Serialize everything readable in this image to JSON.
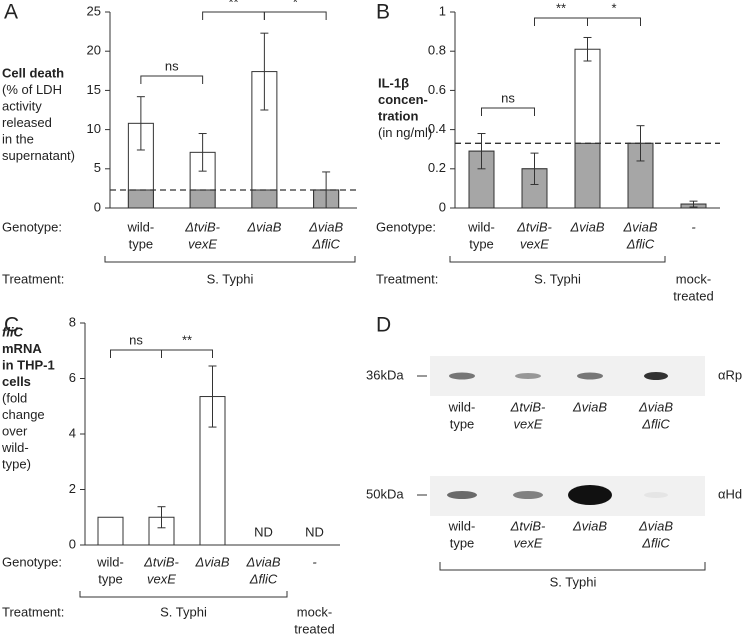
{
  "chart_data": [
    {
      "type": "bar",
      "panel": "A",
      "ylabel": {
        "title": [
          "Cell death"
        ],
        "detail": [
          "(% of LDH",
          "activity",
          "released",
          "in the",
          "supernatant)"
        ]
      },
      "genotype_label": "Genotype:",
      "treatment_label": "Treatment:",
      "treatment": "S. Typhi",
      "categories": [
        [
          "wild-",
          "type"
        ],
        [
          "ΔtviB-",
          "vexE"
        ],
        [
          "ΔviaB"
        ],
        [
          "ΔviaB",
          "ΔfliC"
        ]
      ],
      "values": [
        10.8,
        7.1,
        17.4,
        2.3
      ],
      "errors": [
        3.4,
        2.4,
        4.9,
        2.3
      ],
      "threshold": 2.3,
      "color": "#ffffff",
      "baseline_color": "#a6a6a6",
      "annotations": [
        "ns",
        "**",
        "*"
      ],
      "ylim": [
        0,
        25
      ],
      "yticks": [
        0,
        5,
        10,
        15,
        20,
        25
      ]
    },
    {
      "type": "bar",
      "panel": "B",
      "ylabel": {
        "title": [
          "IL-1β",
          "concen-",
          "tration"
        ],
        "detail": [
          "(in ng/ml)"
        ]
      },
      "genotype_label": "Genotype:",
      "treatment_label": "Treatment:",
      "treatment": "S. Typhi",
      "control": [
        "mock-",
        "treated"
      ],
      "categories": [
        [
          "wild-",
          "type"
        ],
        [
          "ΔtviB-",
          "vexE"
        ],
        [
          "ΔviaB"
        ],
        [
          "ΔviaB",
          "ΔfliC"
        ],
        [
          "-"
        ]
      ],
      "values": [
        0.29,
        0.2,
        0.81,
        0.33,
        0.02
      ],
      "errors": [
        0.09,
        0.08,
        0.06,
        0.09,
        0.015
      ],
      "threshold": 0.33,
      "color": "#ffffff",
      "baseline_color": "#a6a6a6",
      "annotations": [
        "ns",
        "**",
        "*"
      ],
      "ylim": [
        0,
        1
      ],
      "yticks": [
        0,
        0.2,
        0.4,
        0.6,
        0.8,
        1
      ]
    },
    {
      "type": "bar",
      "panel": "C",
      "ylabel": {
        "title": [
          "fliC",
          "mRNA",
          "in THP-1",
          "cells"
        ],
        "detail": [
          "(fold",
          "change",
          "over",
          "wild-",
          "type)"
        ]
      },
      "genotype_label": "Genotype:",
      "treatment_label": "Treatment:",
      "treatment": "S. Typhi",
      "control": [
        "mock-",
        "treated"
      ],
      "categories": [
        [
          "wild-",
          "type"
        ],
        [
          "ΔtviB-",
          "vexE"
        ],
        [
          "ΔviaB"
        ],
        [
          "ΔviaB",
          "ΔfliC"
        ],
        [
          "-"
        ]
      ],
      "values": [
        1,
        1.0,
        5.35,
        null,
        null
      ],
      "errors": [
        null,
        0.38,
        1.1,
        null,
        null
      ],
      "value_labels": [
        null,
        null,
        null,
        "ND",
        "ND"
      ],
      "color": "#ffffff",
      "annotations": [
        "ns",
        "**"
      ],
      "ylim": [
        0,
        8
      ],
      "yticks": [
        0,
        2,
        4,
        6,
        8
      ]
    }
  ],
  "blot": {
    "panel": "D",
    "lanes": [
      [
        "wild-",
        "type"
      ],
      [
        "ΔtviB-",
        "vexE"
      ],
      [
        "ΔviaB"
      ],
      [
        "ΔviaB",
        "ΔfliC"
      ]
    ],
    "rows": [
      {
        "marker": "36kDa",
        "antibody": "αRpoA"
      },
      {
        "marker": "50kDa",
        "antibody": "αHd"
      }
    ],
    "treatment": "S. Typhi"
  }
}
